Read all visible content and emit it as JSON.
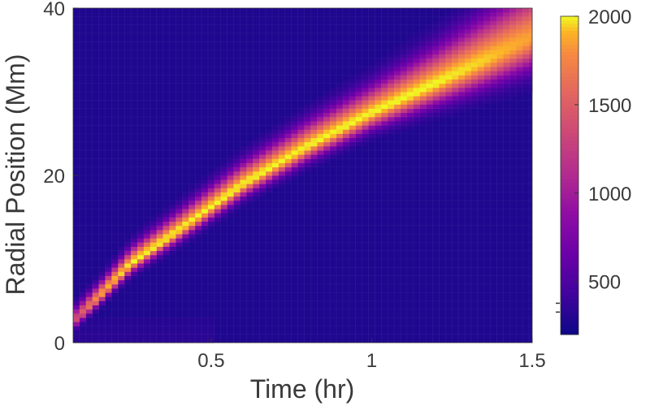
{
  "chart_data": {
    "type": "heatmap",
    "title": "",
    "xlabel": "Time (hr)",
    "ylabel": "Radial Position (Mm)",
    "xlim": [
      0.07,
      1.5
    ],
    "ylim": [
      0,
      40
    ],
    "x_ticks": [
      {
        "value": 0.5,
        "label": "0.5"
      },
      {
        "value": 1,
        "label": "1"
      },
      {
        "value": 1.5,
        "label": "1.5"
      }
    ],
    "y_ticks": [
      {
        "value": 0,
        "label": "0"
      },
      {
        "value": 20,
        "label": "20"
      },
      {
        "value": 40,
        "label": "40"
      }
    ],
    "colorbar": {
      "min": 200,
      "max": 2000,
      "ticks": [
        {
          "value": 500,
          "label": "500"
        },
        {
          "value": 1000,
          "label": "1000"
        },
        {
          "value": 1500,
          "label": "1500"
        },
        {
          "value": 2000,
          "label": "2000"
        }
      ]
    },
    "background_value": 280,
    "grid": {
      "x_step_hr": 0.02,
      "y_step_Mm": 0.5
    },
    "ridge": [
      {
        "t": 0.07,
        "r": 2.5,
        "peak": 1300,
        "width": 1.0
      },
      {
        "t": 0.15,
        "r": 5.5,
        "peak": 1850,
        "width": 1.0
      },
      {
        "t": 0.25,
        "r": 9.5,
        "peak": 2000,
        "width": 1.2
      },
      {
        "t": 0.4,
        "r": 13.5,
        "peak": 2000,
        "width": 1.4
      },
      {
        "t": 0.6,
        "r": 19.0,
        "peak": 2000,
        "width": 1.6
      },
      {
        "t": 0.8,
        "r": 23.5,
        "peak": 2000,
        "width": 1.8
      },
      {
        "t": 1.0,
        "r": 27.5,
        "peak": 2000,
        "width": 2.0
      },
      {
        "t": 1.2,
        "r": 31.0,
        "peak": 2000,
        "width": 2.6
      },
      {
        "t": 1.35,
        "r": 33.7,
        "peak": 1950,
        "width": 3.2
      },
      {
        "t": 1.5,
        "r": 36.5,
        "peak": 1850,
        "width": 3.8
      }
    ]
  }
}
